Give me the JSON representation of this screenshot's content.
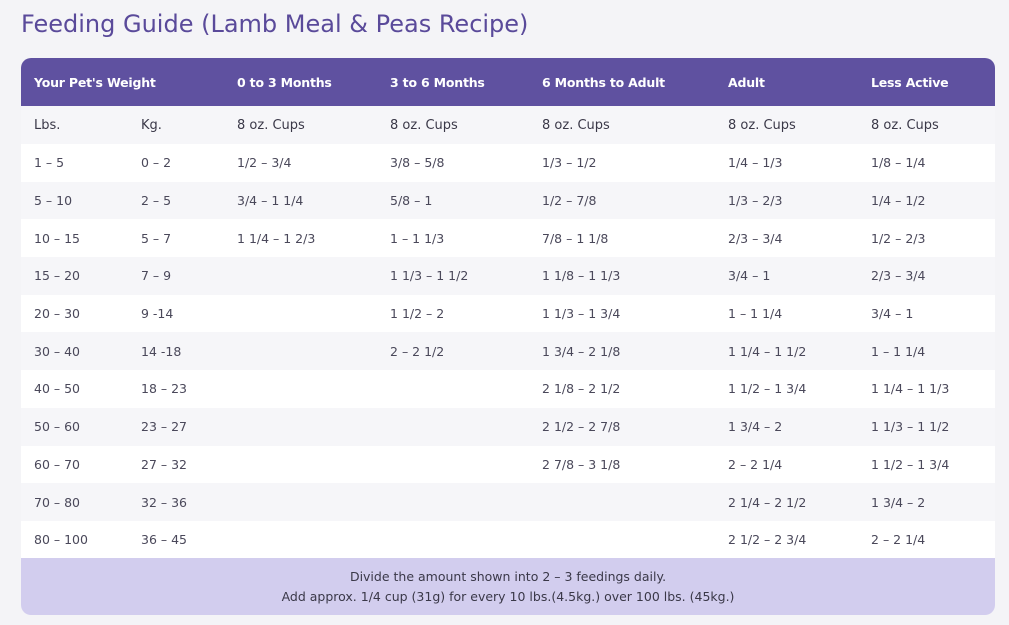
{
  "title": "Feeding Guide (Lamb Meal & Peas Recipe)",
  "table": {
    "headers": [
      "Your Pet's Weight",
      "",
      "0 to 3 Months",
      "3 to 6 Months",
      "6 Months to Adult",
      "Adult",
      "Less Active"
    ],
    "units": [
      "Lbs.",
      "Kg.",
      "8 oz. Cups",
      "8 oz. Cups",
      "8 oz. Cups",
      "8 oz. Cups",
      "8 oz. Cups"
    ],
    "rows": [
      [
        "1 – 5",
        "0 – 2",
        "1/2 – 3/4",
        "3/8 – 5/8",
        "1/3 – 1/2",
        "1/4 – 1/3",
        "1/8 – 1/4"
      ],
      [
        "5 – 10",
        "2 – 5",
        "3/4 – 1 1/4",
        "5/8 – 1",
        "1/2 – 7/8",
        "1/3 – 2/3",
        "1/4 – 1/2"
      ],
      [
        "10 – 15",
        "5 – 7",
        "1 1/4 – 1 2/3",
        "1 – 1 1/3",
        "7/8 – 1 1/8",
        "2/3 – 3/4",
        "1/2 – 2/3"
      ],
      [
        "15 – 20",
        "7 – 9",
        "",
        "1 1/3 – 1 1/2",
        "1 1/8 – 1 1/3",
        "3/4 – 1",
        "2/3 – 3/4"
      ],
      [
        "20 – 30",
        "9 -14",
        "",
        "1 1/2 – 2",
        "1 1/3 – 1 3/4",
        "1 – 1 1/4",
        "3/4 – 1"
      ],
      [
        "30 – 40",
        "14 -18",
        "",
        "2 – 2 1/2",
        "1 3/4 – 2 1/8",
        "1 1/4 – 1 1/2",
        "1 – 1 1/4"
      ],
      [
        "40 – 50",
        "18 – 23",
        "",
        "",
        "2 1/8 – 2 1/2",
        "1 1/2 – 1 3/4",
        "1 1/4 – 1 1/3"
      ],
      [
        "50 – 60",
        "23 – 27",
        "",
        "",
        "2 1/2 – 2 7/8",
        "1 3/4 – 2",
        "1 1/3 – 1 1/2"
      ],
      [
        "60 – 70",
        "27 – 32",
        "",
        "",
        "2 7/8 – 3 1/8",
        "2 – 2 1/4",
        "1 1/2 – 1 3/4"
      ],
      [
        "70 – 80",
        "32 – 36",
        "",
        "",
        "",
        "2 1/4 – 2 1/2",
        "1 3/4 – 2"
      ],
      [
        "80 – 100",
        "36 – 45",
        "",
        "",
        "",
        "2 1/2 – 2 3/4",
        "2 – 2 1/4"
      ]
    ]
  },
  "note": {
    "line1": "Divide the amount shown into 2 – 3 feedings daily.",
    "line2": "Add approx. 1/4 cup (31g) for every 10 lbs.(4.5kg.) over 100 lbs. (45kg.)"
  },
  "colors": {
    "title": "#5a4a9a",
    "header_bg": "#5f51a0",
    "stripe": "#f6f6f9",
    "note_bg": "#d2cdee"
  }
}
